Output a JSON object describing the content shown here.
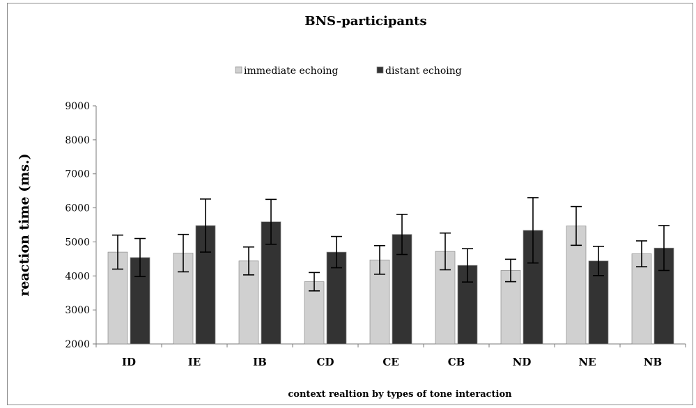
{
  "chart_data": {
    "type": "bar",
    "title": "BNS-participants",
    "xlabel": "context realtion by types of tone interaction",
    "ylabel": "reaction time (ms.)",
    "categories": [
      "ID",
      "IE",
      "IB",
      "CD",
      "CE",
      "CB",
      "ND",
      "NE",
      "NB"
    ],
    "ylim": [
      2000,
      9000
    ],
    "yticks": [
      "2000",
      "3000",
      "4000",
      "5000",
      "6000",
      "7000",
      "8000",
      "9000"
    ],
    "grid": false,
    "legend_position": "top",
    "series": [
      {
        "name": "immediate echoing",
        "color": "#d0d0d0",
        "values": [
          4700,
          4670,
          4440,
          3830,
          4470,
          4720,
          4160,
          5470,
          4650
        ],
        "error": [
          500,
          550,
          410,
          270,
          420,
          540,
          330,
          570,
          380
        ]
      },
      {
        "name": "distant echoing",
        "color": "#333333",
        "values": [
          4540,
          5480,
          5590,
          4700,
          5220,
          4310,
          5340,
          4440,
          4820
        ],
        "error": [
          560,
          780,
          660,
          460,
          590,
          490,
          960,
          430,
          660
        ]
      }
    ]
  }
}
